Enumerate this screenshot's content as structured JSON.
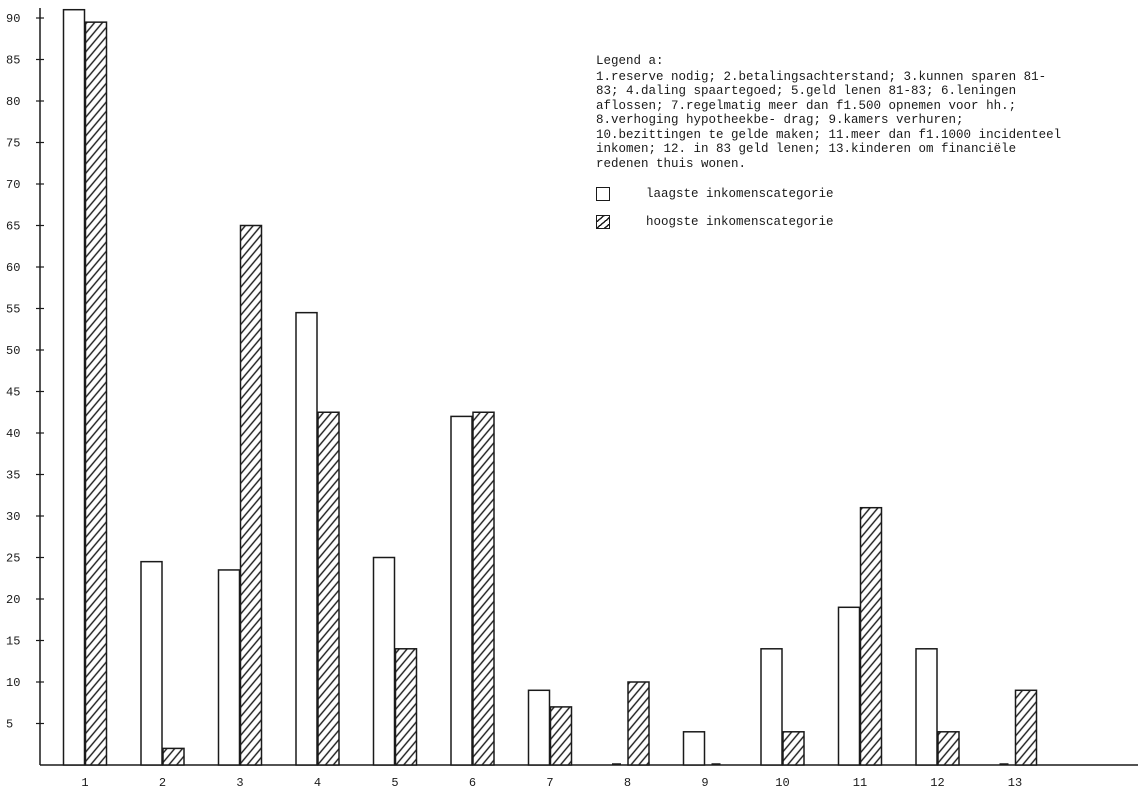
{
  "chart_data": {
    "type": "bar",
    "categories": [
      "1",
      "2",
      "3",
      "4",
      "5",
      "6",
      "7",
      "8",
      "9",
      "10",
      "11",
      "12",
      "13"
    ],
    "series": [
      {
        "name": "laagste inkomenscategorie",
        "values": [
          91,
          24.5,
          23.5,
          54.5,
          25,
          42,
          9,
          0,
          4,
          14,
          19,
          14,
          0
        ]
      },
      {
        "name": "hoogste inkomenscategorie",
        "values": [
          89.5,
          2,
          65,
          42.5,
          14,
          42.5,
          7,
          10,
          0,
          4,
          31,
          4,
          9
        ]
      }
    ],
    "y_ticks": [
      5,
      10,
      15,
      20,
      25,
      30,
      35,
      40,
      45,
      50,
      55,
      60,
      65,
      70,
      75,
      80,
      85,
      90
    ],
    "ylim": [
      0,
      92
    ],
    "grid": false,
    "title": "",
    "xlabel": "",
    "ylabel": "",
    "colors": {
      "ink": "#1a1a1a",
      "bar_fill": "#ffffff"
    }
  },
  "legend": {
    "title": "Legend a:",
    "description": "1.reserve nodig; 2.betalingsachterstand; 3.kunnen sparen 81-83; 4.daling spaartegoed; 5.geld lenen 81-83; 6.leningen aflossen; 7.regelmatig meer dan f1.500 opnemen voor hh.; 8.verhoging hypotheekbe- drag; 9.kamers verhuren; 10.bezittingen te gelde maken; 11.meer dan f1.1000 incidenteel inkomen; 12. in 83 geld lenen; 13.kinderen om financiële redenen thuis wonen.",
    "items": [
      {
        "label": "laagste inkomenscategorie",
        "icon": "open-square-icon"
      },
      {
        "label": "hoogste inkomenscategorie",
        "icon": "hatched-square-icon"
      }
    ]
  }
}
